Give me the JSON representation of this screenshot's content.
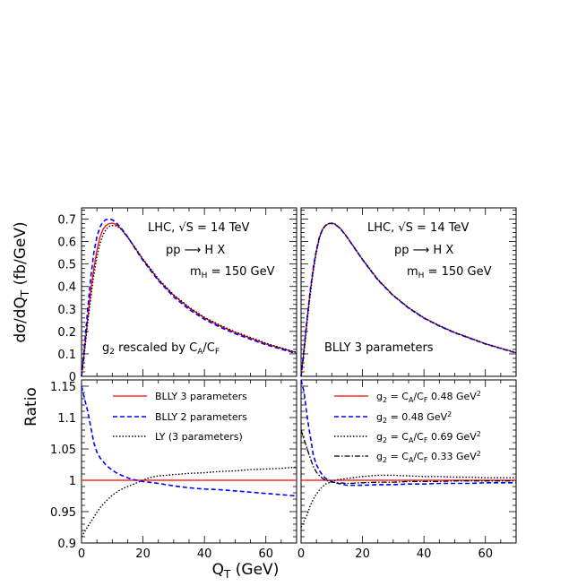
{
  "chart_data": {
    "type": "line",
    "xlabel": "Q_T (GeV)",
    "xlim": [
      0,
      70
    ],
    "x_ticks": [
      0,
      20,
      40,
      60
    ],
    "top_ylabel": "dσ/dQ_T (fb/GeV)",
    "top_ylim": [
      0,
      0.75
    ],
    "top_y_ticks": [
      "0",
      "0.1",
      "0.2",
      "0.3",
      "0.4",
      "0.5",
      "0.6",
      "0.7"
    ],
    "bottom_ylabel": "Ratio",
    "bottom_ylim": [
      0.9,
      1.16
    ],
    "bottom_y_ticks": [
      "0.9",
      "0.95",
      "1",
      "1.05",
      "1.1",
      "1.15"
    ],
    "annotations": {
      "lhc": "LHC, √S = 14 TeV",
      "process": "pp ⟶ H X",
      "mass": "m_H = 150 GeV",
      "top_left_note": "g2 rescaled by CA/CF",
      "top_right_note": "BLLY 3 parameters"
    },
    "panels": [
      {
        "id": "top-left",
        "series": [
          {
            "name": "BLLY 3 parameters",
            "color": "#ff0000",
            "style": "solid",
            "x": [
              0,
              1,
              2,
              3,
              4,
              5,
              6,
              7,
              8,
              9,
              10,
              11,
              12,
              13,
              15,
              17,
              20,
              25,
              30,
              35,
              40,
              45,
              50,
              55,
              60,
              65,
              70
            ],
            "y": [
              0.0,
              0.12,
              0.26,
              0.38,
              0.48,
              0.56,
              0.62,
              0.655,
              0.672,
              0.68,
              0.682,
              0.678,
              0.668,
              0.655,
              0.62,
              0.58,
              0.52,
              0.43,
              0.36,
              0.305,
              0.26,
              0.225,
              0.195,
              0.17,
              0.145,
              0.125,
              0.105
            ]
          },
          {
            "name": "BLLY 2 parameters",
            "color": "#0000ff",
            "style": "dashed",
            "x": [
              0,
              1,
              2,
              3,
              4,
              5,
              6,
              7,
              8,
              9,
              10,
              11,
              12,
              13,
              15,
              17,
              20,
              25,
              30,
              35,
              40,
              45,
              50,
              55,
              60,
              65,
              70
            ],
            "y": [
              0.0,
              0.14,
              0.3,
              0.44,
              0.55,
              0.62,
              0.665,
              0.688,
              0.698,
              0.7,
              0.697,
              0.688,
              0.674,
              0.658,
              0.622,
              0.578,
              0.516,
              0.426,
              0.354,
              0.298,
              0.254,
              0.219,
              0.19,
              0.165,
              0.141,
              0.121,
              0.102
            ]
          },
          {
            "name": "LY (3 parameters)",
            "color": "#000000",
            "style": "dotted",
            "x": [
              0,
              1,
              2,
              3,
              4,
              5,
              6,
              7,
              8,
              9,
              10,
              11,
              12,
              13,
              15,
              17,
              20,
              25,
              30,
              35,
              40,
              45,
              50,
              55,
              60,
              65,
              70
            ],
            "y": [
              0.0,
              0.11,
              0.24,
              0.35,
              0.45,
              0.53,
              0.59,
              0.63,
              0.655,
              0.668,
              0.672,
              0.671,
              0.664,
              0.653,
              0.62,
              0.582,
              0.522,
              0.434,
              0.363,
              0.308,
              0.263,
              0.228,
              0.198,
              0.173,
              0.148,
              0.127,
              0.107
            ]
          }
        ]
      },
      {
        "id": "top-right",
        "series": [
          {
            "name": "BLLY 3 parameters",
            "color": "#ff0000",
            "style": "solid",
            "x": [
              0,
              1,
              2,
              3,
              4,
              5,
              6,
              7,
              8,
              9,
              10,
              11,
              12,
              13,
              15,
              17,
              20,
              25,
              30,
              35,
              40,
              45,
              50,
              55,
              60,
              65,
              70
            ],
            "y": [
              0.0,
              0.12,
              0.26,
              0.38,
              0.48,
              0.56,
              0.62,
              0.655,
              0.672,
              0.68,
              0.682,
              0.678,
              0.668,
              0.655,
              0.62,
              0.58,
              0.52,
              0.43,
              0.36,
              0.305,
              0.26,
              0.225,
              0.195,
              0.17,
              0.145,
              0.125,
              0.105
            ]
          },
          {
            "name": "g2 = 0.48 GeV²",
            "color": "#0000ff",
            "style": "dashed",
            "x": [
              0,
              1,
              2,
              3,
              4,
              5,
              6,
              7,
              8,
              9,
              10,
              11,
              12,
              13,
              15,
              17,
              20,
              25,
              30,
              35,
              40,
              45,
              50,
              55,
              60,
              65,
              70
            ],
            "y": [
              0.0,
              0.125,
              0.265,
              0.385,
              0.485,
              0.563,
              0.622,
              0.656,
              0.672,
              0.68,
              0.681,
              0.677,
              0.667,
              0.654,
              0.619,
              0.579,
              0.519,
              0.429,
              0.359,
              0.304,
              0.259,
              0.224,
              0.194,
              0.169,
              0.144,
              0.124,
              0.104
            ]
          },
          {
            "name": "g2 = CA/CF 0.69 GeV²",
            "color": "#000000",
            "style": "dotted",
            "x": [
              0,
              1,
              2,
              3,
              4,
              5,
              6,
              7,
              8,
              9,
              10,
              11,
              12,
              13,
              15,
              17,
              20,
              25,
              30,
              35,
              40,
              45,
              50,
              55,
              60,
              65,
              70
            ],
            "y": [
              0.0,
              0.11,
              0.245,
              0.365,
              0.47,
              0.553,
              0.616,
              0.653,
              0.671,
              0.68,
              0.682,
              0.678,
              0.668,
              0.655,
              0.62,
              0.58,
              0.521,
              0.432,
              0.361,
              0.306,
              0.261,
              0.226,
              0.196,
              0.171,
              0.146,
              0.126,
              0.106
            ]
          }
        ]
      },
      {
        "id": "bottom-left",
        "series": [
          {
            "name": "BLLY 3 parameters",
            "color": "#ff0000",
            "style": "solid",
            "x": [
              0,
              70
            ],
            "y": [
              1.0,
              1.0
            ]
          },
          {
            "name": "BLLY 2 parameters",
            "color": "#0000ff",
            "style": "dashed",
            "x": [
              0,
              1,
              2,
              3,
              4,
              5,
              6,
              7,
              8,
              10,
              12,
              14,
              16,
              18,
              20,
              25,
              30,
              35,
              40,
              45,
              50,
              55,
              60,
              65,
              70
            ],
            "y": [
              1.15,
              1.13,
              1.11,
              1.085,
              1.06,
              1.045,
              1.036,
              1.03,
              1.024,
              1.016,
              1.01,
              1.006,
              1.002,
              1.0,
              0.998,
              0.995,
              0.991,
              0.988,
              0.986,
              0.985,
              0.983,
              0.981,
              0.979,
              0.977,
              0.975
            ]
          },
          {
            "name": "LY (3 parameters)",
            "color": "#000000",
            "style": "dotted",
            "x": [
              0,
              1,
              2,
              3,
              4,
              5,
              6,
              8,
              10,
              12,
              14,
              16,
              18,
              20,
              22,
              25,
              30,
              35,
              40,
              45,
              50,
              55,
              60,
              65,
              70
            ],
            "y": [
              0.91,
              0.918,
              0.926,
              0.934,
              0.941,
              0.949,
              0.956,
              0.967,
              0.976,
              0.983,
              0.988,
              0.992,
              0.996,
              1.0,
              1.004,
              1.007,
              1.009,
              1.011,
              1.012,
              1.014,
              1.015,
              1.017,
              1.018,
              1.019,
              1.021
            ]
          }
        ]
      },
      {
        "id": "bottom-right",
        "series": [
          {
            "name": "g2 = CA/CF 0.48 GeV²",
            "color": "#ff0000",
            "style": "solid",
            "x": [
              0,
              70
            ],
            "y": [
              1.0,
              1.0
            ]
          },
          {
            "name": "g2 = 0.48 GeV²",
            "color": "#0000ff",
            "style": "dashed",
            "x": [
              0,
              1,
              2,
              3,
              4,
              5,
              6,
              7,
              8,
              10,
              12,
              15,
              20,
              25,
              30,
              35,
              40,
              45,
              50,
              55,
              60,
              65,
              70
            ],
            "y": [
              1.16,
              1.14,
              1.1,
              1.07,
              1.04,
              1.025,
              1.015,
              1.008,
              1.003,
              0.998,
              0.995,
              0.992,
              0.992,
              0.993,
              0.993,
              0.994,
              0.994,
              0.995,
              0.995,
              0.995,
              0.996,
              0.996,
              0.996
            ]
          },
          {
            "name": "g2 = CA/CF 0.69 GeV²",
            "color": "#000000",
            "style": "dotted",
            "x": [
              0,
              1,
              2,
              3,
              4,
              5,
              6,
              7,
              8,
              10,
              12,
              15,
              20,
              25,
              30,
              35,
              40,
              45,
              50,
              55,
              60,
              65,
              70
            ],
            "y": [
              0.925,
              0.935,
              0.945,
              0.96,
              0.97,
              0.978,
              0.985,
              0.99,
              0.994,
              0.998,
              1.001,
              1.003,
              1.006,
              1.008,
              1.008,
              1.007,
              1.006,
              1.006,
              1.005,
              1.005,
              1.004,
              1.004,
              1.004
            ]
          },
          {
            "name": "g2 = CA/CF 0.33 GeV²",
            "color": "#000000",
            "style": "dashdot",
            "x": [
              0,
              1,
              2,
              3,
              4,
              5,
              6,
              7,
              8,
              10,
              12,
              15,
              20,
              25,
              30,
              35,
              40,
              45,
              50,
              55,
              60,
              65,
              70
            ],
            "y": [
              1.08,
              1.065,
              1.05,
              1.035,
              1.022,
              1.013,
              1.007,
              1.003,
              1.0,
              0.997,
              0.996,
              0.995,
              0.996,
              0.997,
              0.997,
              0.998,
              0.998,
              0.998,
              0.999,
              0.999,
              0.999,
              0.999,
              0.999
            ]
          }
        ]
      }
    ]
  }
}
